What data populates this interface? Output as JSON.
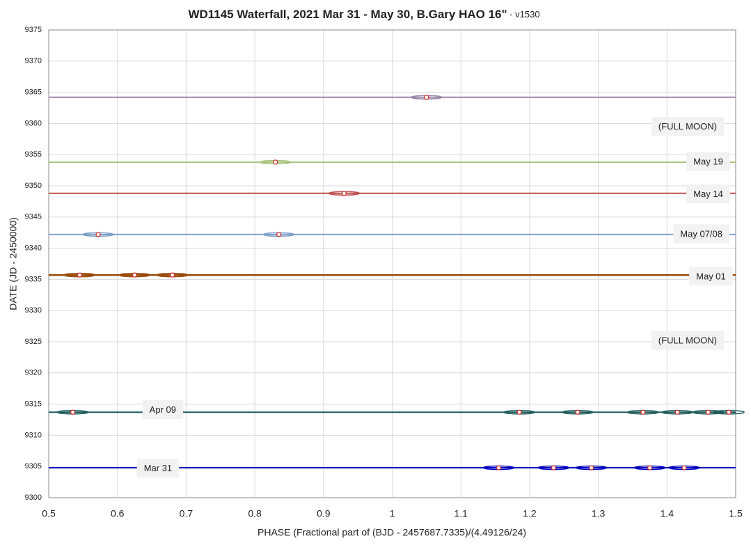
{
  "chart_data": {
    "type": "waterfall",
    "title": "WD1145 Waterfall, 2021 Mar 31 - May 30, B.Gary HAO 16\"",
    "title_suffix": " - v1530",
    "x_label": "PHASE (Fractional part of (BJD - 2457687.7335)/(4.49126/24)",
    "y_label": "DATE (JD - 2450000)",
    "xlim": [
      0.5,
      1.5
    ],
    "xticks": [
      0.5,
      0.6,
      0.7,
      0.8,
      0.9,
      1.0,
      1.1,
      1.2,
      1.3,
      1.4,
      1.5
    ],
    "ylim": [
      9300,
      9375
    ],
    "yticks": [
      9300,
      9305,
      9310,
      9315,
      9320,
      9325,
      9330,
      9335,
      9340,
      9345,
      9350,
      9355,
      9360,
      9365,
      9370,
      9375
    ],
    "grid": true,
    "series": [
      {
        "color": "#9b86a8",
        "values": [
          9364.2
        ],
        "dips": [
          1.05
        ]
      },
      {
        "color": "#a9c47f",
        "values": [
          9353.8
        ],
        "dips": [
          0.83
        ]
      },
      {
        "color": "#c0504d",
        "values": [
          9348.8
        ],
        "dips": [
          0.93
        ]
      },
      {
        "color": "#7f9fc8",
        "values": [
          9342.2
        ],
        "dips": [
          0.572,
          0.835
        ]
      },
      {
        "color": "#974806",
        "values": [
          9335.7
        ],
        "dips": [
          0.545,
          0.625,
          0.68
        ]
      },
      {
        "color": "#1f5b5b",
        "values": [
          9313.7
        ],
        "dips": [
          0.535,
          1.185,
          1.27,
          1.365,
          1.415,
          1.46,
          1.49
        ]
      },
      {
        "color": "#0000c0",
        "values": [
          9304.8
        ],
        "dips": [
          1.155,
          1.235,
          1.29,
          1.375,
          1.425
        ]
      }
    ],
    "annotations": [
      {
        "text": "(FULL MOON)",
        "x": 1.43,
        "y": 9359.4
      },
      {
        "text": "May 19",
        "x": 1.46,
        "y": 9353.8
      },
      {
        "text": "May 14",
        "x": 1.46,
        "y": 9348.6
      },
      {
        "text": "May 07/08",
        "x": 1.45,
        "y": 9342.2
      },
      {
        "text": "May 01",
        "x": 1.464,
        "y": 9335.4
      },
      {
        "text": "(FULL MOON)",
        "x": 1.43,
        "y": 9325.1
      },
      {
        "text": "Apr 09",
        "x": 0.666,
        "y": 9314.0
      },
      {
        "text": "Mar 31",
        "x": 0.659,
        "y": 9304.6
      }
    ]
  }
}
